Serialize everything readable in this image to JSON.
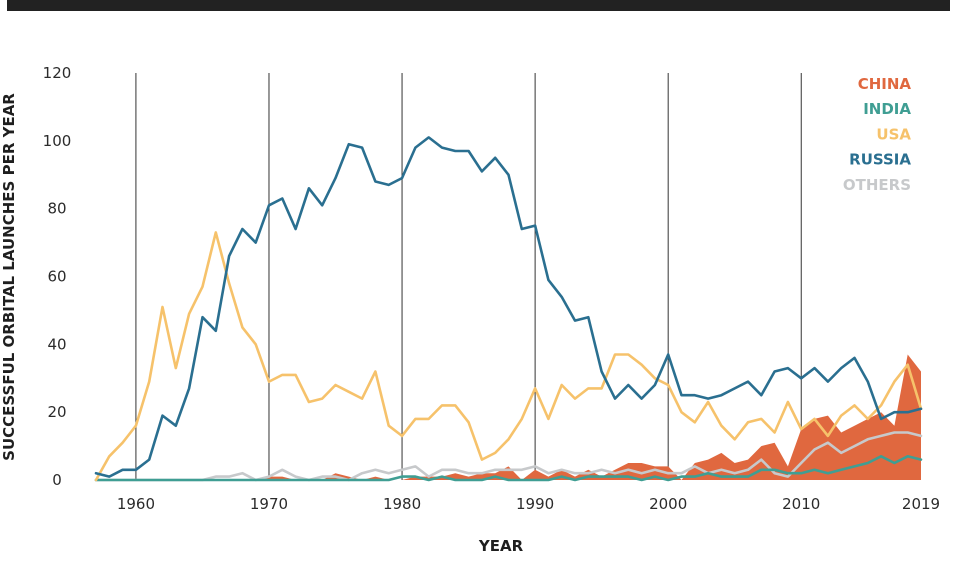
{
  "chart_data": {
    "type": "line",
    "xlabel": "YEAR",
    "ylabel": "SUCCESSFUL ORBITAL LAUNCHES PER YEAR",
    "xlim": [
      1957,
      2019
    ],
    "ylim": [
      0,
      120
    ],
    "x_ticks": [
      "1960",
      "1970",
      "1980",
      "1990",
      "2000",
      "2010",
      "2019"
    ],
    "y_ticks": [
      "0",
      "20",
      "40",
      "60",
      "80",
      "100",
      "120"
    ],
    "grid": "vertical lines at decades",
    "legend_position": "top-right",
    "x": [
      1957,
      1958,
      1959,
      1960,
      1961,
      1962,
      1963,
      1964,
      1965,
      1966,
      1967,
      1968,
      1969,
      1970,
      1971,
      1972,
      1973,
      1974,
      1975,
      1976,
      1977,
      1978,
      1979,
      1980,
      1981,
      1982,
      1983,
      1984,
      1985,
      1986,
      1987,
      1988,
      1989,
      1990,
      1991,
      1992,
      1993,
      1994,
      1995,
      1996,
      1997,
      1998,
      1999,
      2000,
      2001,
      2002,
      2003,
      2004,
      2005,
      2006,
      2007,
      2008,
      2009,
      2010,
      2011,
      2012,
      2013,
      2014,
      2015,
      2016,
      2017,
      2018,
      2019
    ],
    "series": [
      {
        "name": "CHINA",
        "color": "#e0683f",
        "style": "area",
        "values": [
          0,
          0,
          0,
          0,
          0,
          0,
          0,
          0,
          0,
          0,
          0,
          0,
          0,
          1,
          1,
          0,
          0,
          0,
          2,
          1,
          0,
          1,
          0,
          0,
          1,
          1,
          1,
          2,
          1,
          2,
          2,
          4,
          0,
          3,
          1,
          3,
          1,
          3,
          1,
          3,
          5,
          5,
          4,
          4,
          0,
          5,
          6,
          8,
          5,
          6,
          10,
          11,
          4,
          15,
          18,
          19,
          14,
          16,
          18,
          20,
          16,
          37,
          32
        ]
      },
      {
        "name": "INDIA",
        "color": "#3f9e93",
        "style": "line",
        "values": [
          0,
          0,
          0,
          0,
          0,
          0,
          0,
          0,
          0,
          0,
          0,
          0,
          0,
          0,
          0,
          0,
          0,
          0,
          0,
          0,
          0,
          0,
          0,
          1,
          1,
          0,
          1,
          0,
          0,
          0,
          1,
          0,
          0,
          0,
          0,
          1,
          0,
          1,
          1,
          1,
          1,
          0,
          1,
          0,
          1,
          1,
          2,
          1,
          1,
          1,
          3,
          3,
          2,
          2,
          3,
          2,
          3,
          4,
          5,
          7,
          5,
          7,
          6
        ]
      },
      {
        "name": "USA",
        "color": "#f6c26b",
        "style": "line",
        "values": [
          0,
          7,
          11,
          16,
          29,
          51,
          33,
          49,
          57,
          73,
          58,
          45,
          40,
          29,
          31,
          31,
          23,
          24,
          28,
          26,
          24,
          32,
          16,
          13,
          18,
          18,
          22,
          22,
          17,
          6,
          8,
          12,
          18,
          27,
          18,
          28,
          24,
          27,
          27,
          37,
          37,
          34,
          30,
          28,
          20,
          17,
          23,
          16,
          12,
          17,
          18,
          14,
          23,
          15,
          18,
          13,
          19,
          22,
          18,
          22,
          29,
          34,
          21
        ]
      },
      {
        "name": "RUSSIA",
        "color": "#2a6f90",
        "style": "line",
        "values": [
          2,
          1,
          3,
          3,
          6,
          19,
          16,
          27,
          48,
          44,
          66,
          74,
          70,
          81,
          83,
          74,
          86,
          81,
          89,
          99,
          98,
          88,
          87,
          89,
          98,
          101,
          98,
          97,
          97,
          91,
          95,
          90,
          74,
          75,
          59,
          54,
          47,
          48,
          32,
          24,
          28,
          24,
          28,
          37,
          25,
          25,
          24,
          25,
          27,
          29,
          25,
          32,
          33,
          30,
          33,
          29,
          33,
          36,
          29,
          18,
          20,
          20,
          21
        ]
      },
      {
        "name": "OTHERS",
        "color": "#c7c9cb",
        "style": "line",
        "values": [
          0,
          0,
          0,
          0,
          0,
          0,
          0,
          0,
          0,
          1,
          1,
          2,
          0,
          1,
          3,
          1,
          0,
          1,
          1,
          0,
          2,
          3,
          2,
          3,
          4,
          1,
          3,
          3,
          2,
          2,
          3,
          3,
          3,
          4,
          2,
          3,
          2,
          2,
          3,
          2,
          3,
          2,
          3,
          2,
          2,
          4,
          2,
          3,
          2,
          3,
          6,
          2,
          1,
          5,
          9,
          11,
          8,
          10,
          12,
          13,
          14,
          14,
          13
        ]
      }
    ]
  }
}
